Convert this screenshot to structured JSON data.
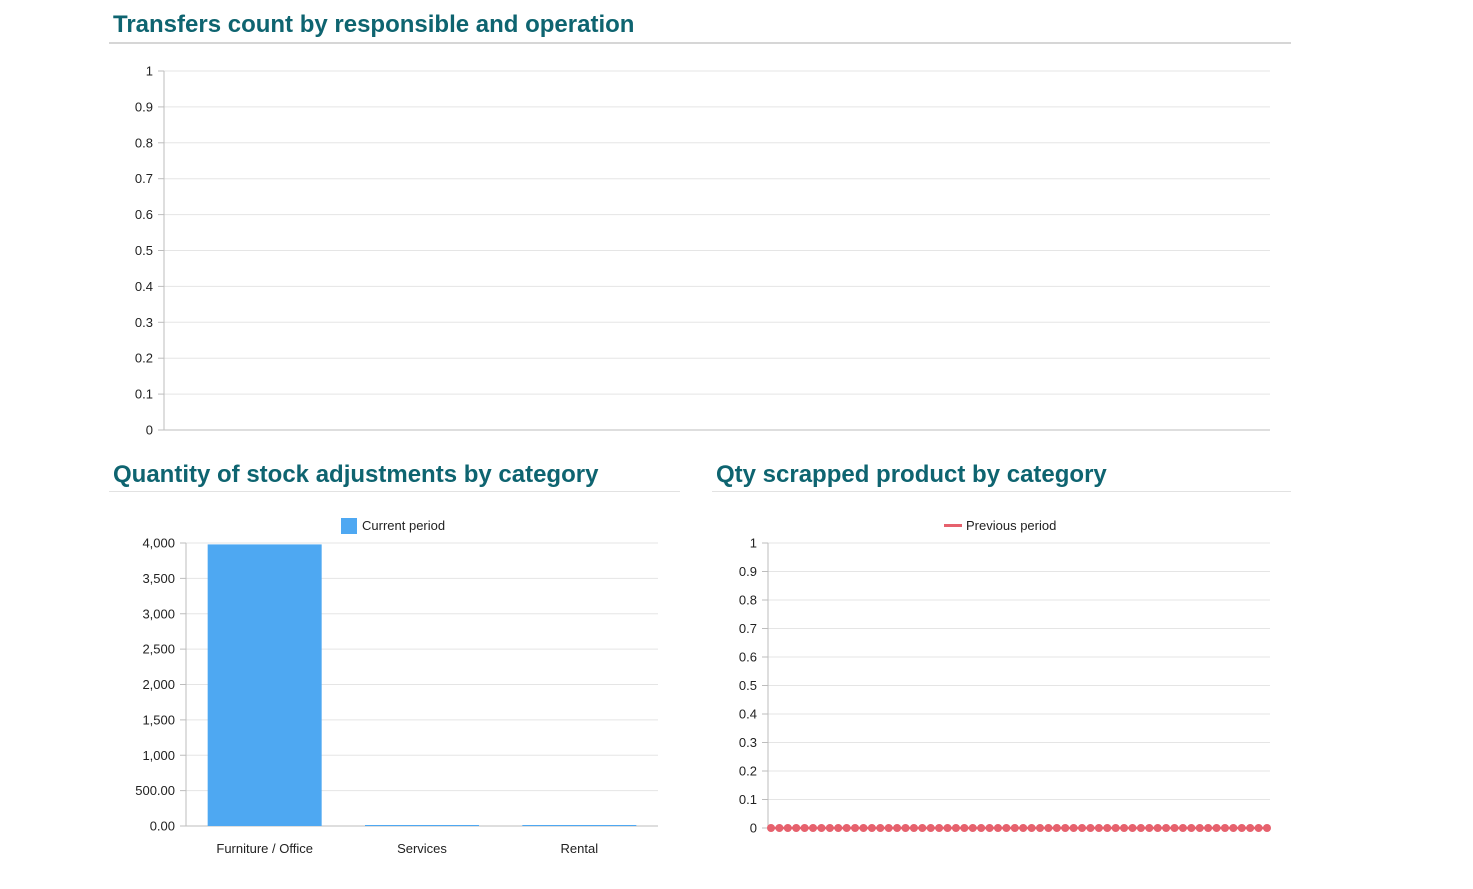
{
  "sections": {
    "transfers": {
      "title": "Transfers count by responsible and operation"
    },
    "adjustments": {
      "title": "Quantity of stock adjustments by category"
    },
    "scrapped": {
      "title": "Qty scrapped product by category"
    }
  },
  "colors": {
    "title": "#0e6470",
    "current_period": "#4ea8f2",
    "previous_period": "#e6616d",
    "grid": "#e5e5e5",
    "axis": "#bdbdbd"
  },
  "chart_data": [
    {
      "type": "bar",
      "title": "Transfers count by responsible and operation",
      "categories": [],
      "series": [],
      "ylim": [
        0,
        1
      ],
      "yticks": [
        "0",
        "0.1",
        "0.2",
        "0.3",
        "0.4",
        "0.5",
        "0.6",
        "0.7",
        "0.8",
        "0.9",
        "1"
      ],
      "grid": true,
      "legend": "none"
    },
    {
      "type": "bar",
      "title": "Quantity of stock adjustments by category",
      "categories": [
        "Furniture / Office",
        "Services",
        "Rental"
      ],
      "series": [
        {
          "name": "Current period",
          "values": [
            3980,
            12,
            5
          ]
        }
      ],
      "ylim": [
        0,
        4000
      ],
      "yticks": [
        "0.00",
        "500.00",
        "1,000",
        "1,500",
        "2,000",
        "2,500",
        "3,000",
        "3,500",
        "4,000"
      ],
      "grid": true,
      "legend": "top"
    },
    {
      "type": "line",
      "title": "Qty scrapped product by category",
      "series": [
        {
          "name": "Previous period",
          "point_count": 60,
          "values_all": 0
        }
      ],
      "ylim": [
        0,
        1
      ],
      "yticks": [
        "0",
        "0.1",
        "0.2",
        "0.3",
        "0.4",
        "0.5",
        "0.6",
        "0.7",
        "0.8",
        "0.9",
        "1"
      ],
      "grid": true,
      "legend": "top"
    }
  ]
}
